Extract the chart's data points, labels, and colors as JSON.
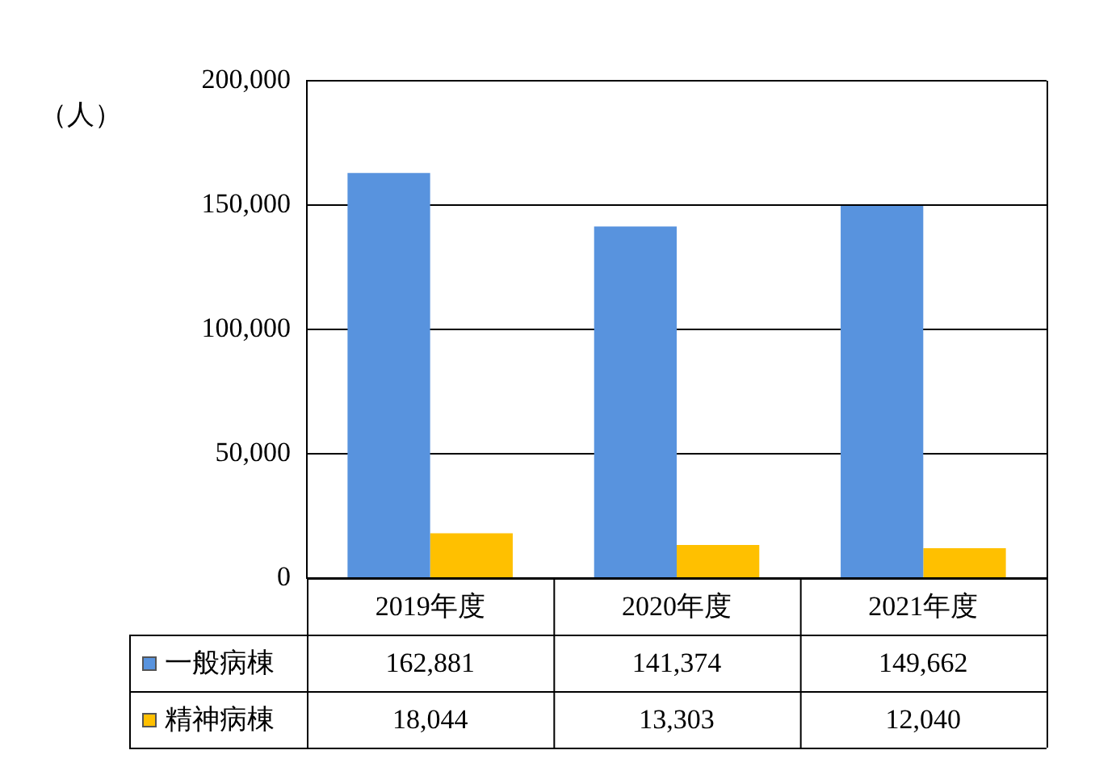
{
  "chart_data": {
    "type": "bar",
    "ylabel": "（人）",
    "categories": [
      "2019年度",
      "2020年度",
      "2021年度"
    ],
    "series": [
      {
        "name": "一般病棟",
        "color": "#5893de",
        "values": [
          162881,
          141374,
          149662
        ],
        "value_labels": [
          "162,881",
          "141,374",
          "149,662"
        ]
      },
      {
        "name": "精神病棟",
        "color": "#ffc000",
        "values": [
          18044,
          13303,
          12040
        ],
        "value_labels": [
          "18,044",
          "13,303",
          "12,040"
        ]
      }
    ],
    "ylim": [
      0,
      200000
    ],
    "yticks": [
      {
        "value": 0,
        "label": "0"
      },
      {
        "value": 50000,
        "label": "50,000"
      },
      {
        "value": 100000,
        "label": "100,000"
      },
      {
        "value": 150000,
        "label": "150,000"
      },
      {
        "value": 200000,
        "label": "200,000"
      }
    ],
    "grid": "y",
    "legend": "bottom left"
  }
}
